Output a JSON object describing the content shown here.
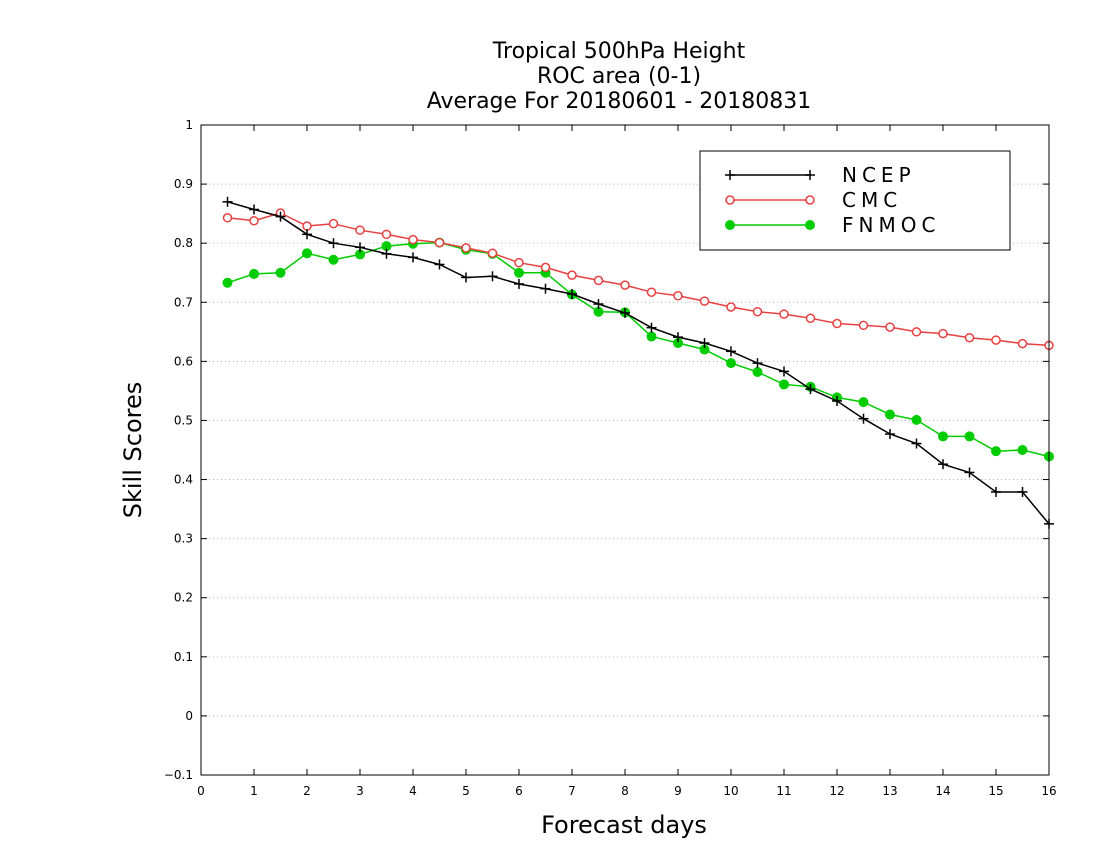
{
  "chart_data": {
    "type": "line",
    "title": [
      "Tropical 500hPa Height",
      "ROC area (0-1)",
      "Average For 20180601 - 20180831"
    ],
    "xlabel": "Forecast days",
    "ylabel": "Skill Scores",
    "xlim": [
      0,
      16
    ],
    "ylim": [
      -0.1,
      1
    ],
    "xticks": [
      "0",
      "1",
      "2",
      "3",
      "4",
      "5",
      "6",
      "7",
      "8",
      "9",
      "10",
      "11",
      "12",
      "13",
      "14",
      "15",
      "16"
    ],
    "xtick_values": [
      0,
      1,
      2,
      3,
      4,
      5,
      6,
      7,
      8,
      9,
      10,
      11,
      12,
      13,
      14,
      15,
      16
    ],
    "yticks": [
      "−0.1",
      "0",
      "0.1",
      "0.2",
      "0.3",
      "0.4",
      "0.5",
      "0.6",
      "0.7",
      "0.8",
      "0.9",
      "1"
    ],
    "ytick_values": [
      -0.1,
      0,
      0.1,
      0.2,
      0.3,
      0.4,
      0.5,
      0.6,
      0.7,
      0.8,
      0.9,
      1.0
    ],
    "grid": "horizontal dotted",
    "legend_position": "top-right",
    "x": [
      0.5,
      1,
      1.5,
      2,
      2.5,
      3,
      3.5,
      4,
      4.5,
      5,
      5.5,
      6,
      6.5,
      7,
      7.5,
      8,
      8.5,
      9,
      9.5,
      10,
      10.5,
      11,
      11.5,
      12,
      12.5,
      13,
      13.5,
      14,
      14.5,
      15,
      15.5,
      16
    ],
    "series": [
      {
        "name": "NCEP",
        "color": "#000000",
        "marker": "plus",
        "values": [
          0.87,
          0.857,
          0.845,
          0.815,
          0.8,
          0.793,
          0.782,
          0.776,
          0.764,
          0.742,
          0.744,
          0.731,
          0.723,
          0.714,
          0.697,
          0.682,
          0.657,
          0.641,
          0.631,
          0.617,
          0.597,
          0.583,
          0.553,
          0.533,
          0.503,
          0.477,
          0.461,
          0.426,
          0.412,
          0.379,
          0.379,
          0.325
        ]
      },
      {
        "name": "CMC",
        "color": "#e84040",
        "marker": "open-circle",
        "values": [
          0.843,
          0.838,
          0.851,
          0.829,
          0.833,
          0.822,
          0.815,
          0.806,
          0.801,
          0.792,
          0.783,
          0.767,
          0.759,
          0.746,
          0.737,
          0.729,
          0.717,
          0.711,
          0.702,
          0.692,
          0.684,
          0.68,
          0.673,
          0.664,
          0.661,
          0.658,
          0.65,
          0.647,
          0.64,
          0.636,
          0.63,
          0.627
        ]
      },
      {
        "name": "FNMOC",
        "color": "#00cc00",
        "marker": "filled-circle",
        "values": [
          0.733,
          0.748,
          0.75,
          0.783,
          0.772,
          0.781,
          0.795,
          0.799,
          0.801,
          0.789,
          0.782,
          0.75,
          0.75,
          0.713,
          0.684,
          0.683,
          0.642,
          0.631,
          0.62,
          0.597,
          0.582,
          0.561,
          0.557,
          0.539,
          0.531,
          0.51,
          0.501,
          0.473,
          0.473,
          0.448,
          0.45,
          0.439
        ]
      }
    ]
  }
}
